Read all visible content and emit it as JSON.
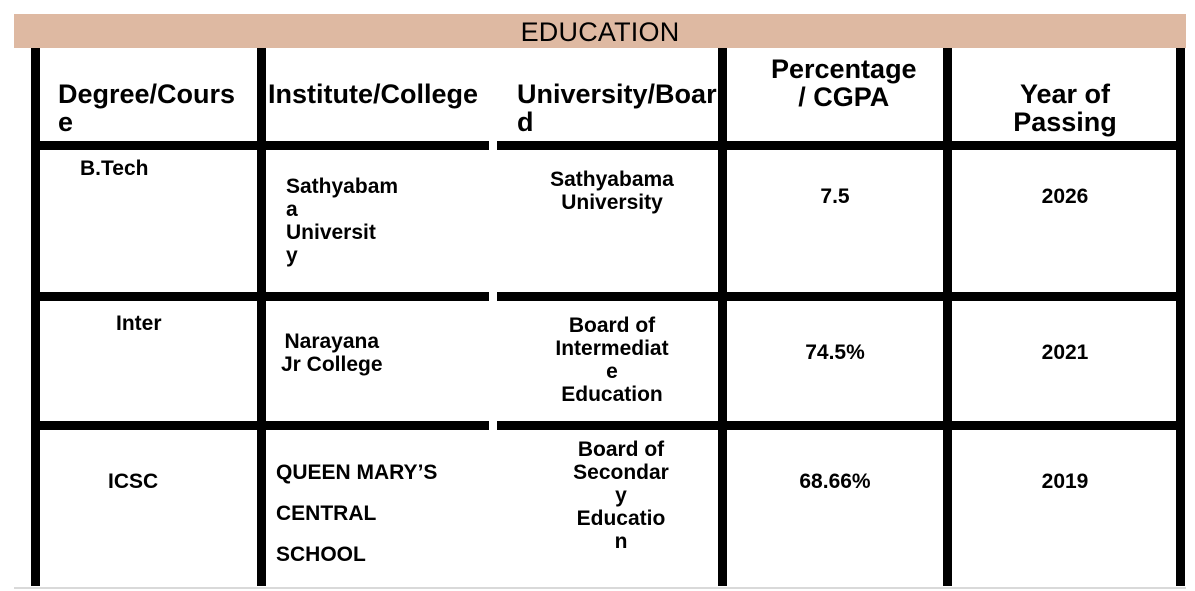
{
  "title": "EDUCATION",
  "headers": {
    "degree": "Degree/Cours\ne",
    "institute": "Institute/College",
    "university": "University/Boar\nd",
    "percentage": "Percentage\n / CGPA",
    "year": "Year of\nPassing"
  },
  "rows": [
    {
      "degree": "B.Tech",
      "institute": "Sathyabam\n   a\n   Universit\n   y",
      "university": "Sathyabama\nUniversity",
      "percentage": "7.5",
      "year": "2026"
    },
    {
      "degree": "Inter",
      "institute": "Narayana\nJr College",
      "university": "Board of\nIntermediat\ne\nEducation",
      "percentage": "74.5%",
      "year": "2021"
    },
    {
      "degree": "ICSC",
      "institute_lines": [
        "QUEEN MARY’S",
        "CENTRAL",
        "SCHOOL"
      ],
      "university": "Board of\nSecondar\ny\nEducatio\nn",
      "percentage": "68.66%",
      "year": "2019"
    }
  ],
  "colors": {
    "banner": "#deb9a2",
    "border": "#000000"
  }
}
